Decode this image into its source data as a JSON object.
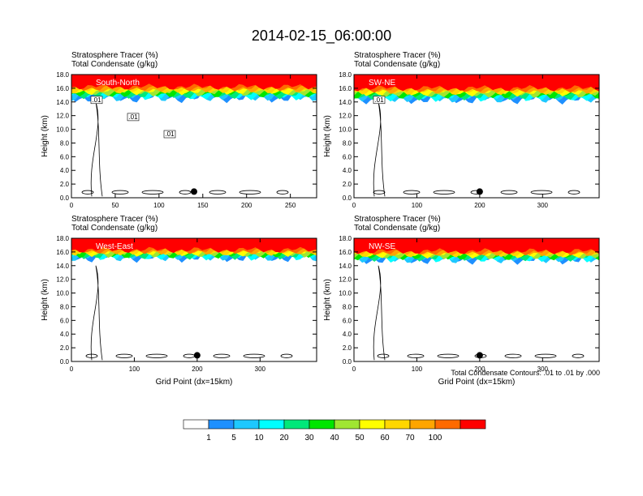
{
  "title": "2014-02-15_06:00:00",
  "colors": {
    "levels": [
      "#ffffff",
      "#1e90ff",
      "#1ec8ff",
      "#00ffff",
      "#00e87a",
      "#00e600",
      "#a0e632",
      "#ffff00",
      "#ffd700",
      "#ffa500",
      "#ff6a00",
      "#ff0000"
    ]
  },
  "chart_data": [
    {
      "type": "heatmap",
      "name": "South-North",
      "field_label": "Stratosphere Tracer   (%)",
      "contour_label": "Total Condensate   (g/kg)",
      "xlim": [
        0,
        280
      ],
      "ylim": [
        0,
        18
      ],
      "xticks": [
        "0",
        "50",
        "100",
        "150",
        "200",
        "250"
      ],
      "ylabel": "Height (km)",
      "xlabel": "",
      "yticks": [
        "0.0",
        "2.0",
        "4.0",
        "6.0",
        "8.0",
        "10.0",
        "12.0",
        "14.0",
        "16.0",
        "18.0"
      ],
      "tracer_100_base_km": 16.2,
      "tracer_1_base_km": 14.6,
      "marker": {
        "x": 140,
        "y_km": 0.9
      },
      "contour_labels": [
        ".01",
        ".01",
        ".01"
      ]
    },
    {
      "type": "heatmap",
      "name": "SW-NE",
      "field_label": "Stratosphere Tracer   (%)",
      "contour_label": "Total Condensate   (g/kg)",
      "xlim": [
        0,
        390
      ],
      "ylim": [
        0,
        18
      ],
      "xticks": [
        "0",
        "100",
        "200",
        "300"
      ],
      "ylabel": "Height (km)",
      "xlabel": "",
      "yticks": [
        "0.0",
        "2.0",
        "4.0",
        "6.0",
        "8.0",
        "10.0",
        "12.0",
        "14.0",
        "16.0",
        "18.0"
      ],
      "tracer_100_base_km": 16.0,
      "tracer_1_base_km": 14.4,
      "marker": {
        "x": 200,
        "y_km": 0.9
      },
      "contour_labels": [
        ".01"
      ]
    },
    {
      "type": "heatmap",
      "name": "West-East",
      "field_label": "Stratosphere Tracer   (%)",
      "contour_label": "Total Condensate   (g/kg)",
      "xlim": [
        0,
        390
      ],
      "ylim": [
        0,
        18
      ],
      "xticks": [
        "0",
        "100",
        "200",
        "300"
      ],
      "ylabel": "Height (km)",
      "xlabel": "Grid Point (dx=15km)",
      "yticks": [
        "0.0",
        "2.0",
        "4.0",
        "6.0",
        "8.0",
        "10.0",
        "12.0",
        "14.0",
        "16.0",
        "18.0"
      ],
      "tracer_100_base_km": 16.3,
      "tracer_1_base_km": 15.2,
      "marker": {
        "x": 200,
        "y_km": 0.9
      },
      "contour_labels": []
    },
    {
      "type": "heatmap",
      "name": "NW-SE",
      "field_label": "Stratosphere Tracer   (%)",
      "contour_label": "Total Condensate   (g/kg)",
      "xlim": [
        0,
        390
      ],
      "ylim": [
        0,
        18
      ],
      "xticks": [
        "0",
        "100",
        "200",
        "300"
      ],
      "ylabel": "Height (km)",
      "xlabel": "Grid Point (dx=15km)",
      "yticks": [
        "0.0",
        "2.0",
        "4.0",
        "6.0",
        "8.0",
        "10.0",
        "12.0",
        "14.0",
        "16.0",
        "18.0"
      ],
      "tracer_100_base_km": 16.1,
      "tracer_1_base_km": 14.9,
      "marker": {
        "x": 200,
        "y_km": 0.9
      },
      "contour_labels": []
    }
  ],
  "contour_note": "Total Condensate Contours: .01 to .01 by .000",
  "colorbar": {
    "labels": [
      "1",
      "5",
      "10",
      "20",
      "30",
      "40",
      "50",
      "60",
      "70",
      "100"
    ]
  }
}
